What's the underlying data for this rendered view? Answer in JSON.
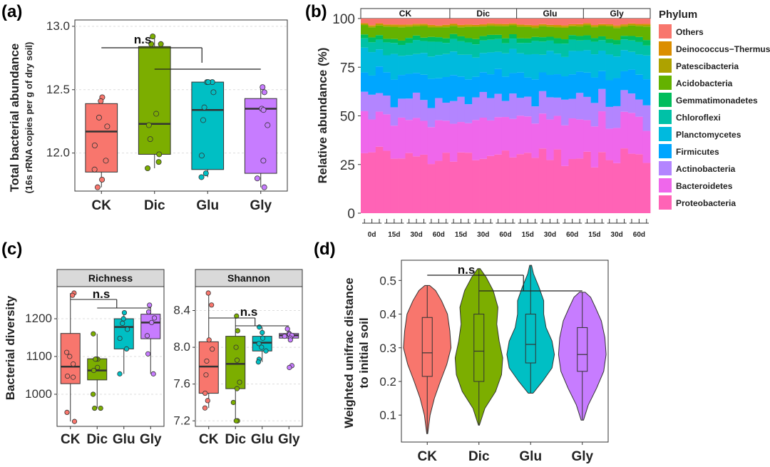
{
  "panels": {
    "a": "(a)",
    "b": "(b)",
    "c": "(c)",
    "d": "(d)"
  },
  "colors": {
    "CK": "#F8766D",
    "Dic": "#7CAE00",
    "Glu": "#00BFC4",
    "Gly": "#C77CFF"
  },
  "chart_data": [
    {
      "id": "a",
      "type": "box",
      "title": "",
      "xlabel": "",
      "ylabel": "Total bacterial abundance",
      "ylabel2": "(16s rRNA copies per g of dry soil)",
      "ylim": [
        11.7,
        13.05
      ],
      "yticks": [
        12.0,
        12.5,
        13.0
      ],
      "ytick_labels": [
        "12.0",
        "12.5",
        "13.0"
      ],
      "categories": [
        "CK",
        "Dic",
        "Glu",
        "Gly"
      ],
      "annotation": "n.s",
      "boxes": [
        {
          "q1": 11.85,
          "median": 12.17,
          "q3": 12.39,
          "whisker_low": 11.73,
          "whisker_high": 12.44,
          "points": [
            12.44,
            12.41,
            12.28,
            12.21,
            12.06,
            11.94,
            11.87,
            11.79,
            11.73
          ]
        },
        {
          "q1": 11.99,
          "median": 12.23,
          "q3": 12.84,
          "whisker_low": 11.88,
          "whisker_high": 12.92,
          "points": [
            12.92,
            12.86,
            12.86,
            12.31,
            12.22,
            12.11,
            11.99,
            11.93,
            11.88
          ]
        },
        {
          "q1": 11.87,
          "median": 12.34,
          "q3": 12.56,
          "whisker_low": 11.81,
          "whisker_high": 12.56,
          "points": [
            12.56,
            12.56,
            12.56,
            12.48,
            12.36,
            12.26,
            11.98,
            11.84,
            11.81
          ]
        },
        {
          "q1": 11.84,
          "median": 12.35,
          "q3": 12.43,
          "whisker_low": 11.73,
          "whisker_high": 12.52,
          "points": [
            12.52,
            12.48,
            12.35,
            12.34,
            12.22,
            11.94,
            11.8,
            11.73
          ]
        }
      ]
    },
    {
      "id": "b",
      "type": "stacked_bar",
      "ylabel": "Relative abundance (%)",
      "ylim": [
        0,
        100
      ],
      "yticks": [
        0,
        25,
        50,
        75,
        100
      ],
      "groups": [
        "CK",
        "Dic",
        "Glu",
        "Gly"
      ],
      "group_day_labels": [
        [
          "0d",
          "15d",
          "30d",
          "60d"
        ],
        [
          "15d",
          "30d",
          "60d"
        ],
        [
          "15d",
          "30d",
          "60d"
        ],
        [
          "15d",
          "30d",
          "60d"
        ]
      ],
      "legend_title": "Phylum",
      "phyla": [
        "Others",
        "Deinococcus−Thermus",
        "Patescibacteria",
        "Acidobacteria",
        "Gemmatimonadetes",
        "Chloroflexi",
        "Planctomycetes",
        "Firmicutes",
        "Actinobacteria",
        "Bacteroidetes",
        "Proteobacteria"
      ],
      "phylum_colors": [
        "#F8766D",
        "#DB8E00",
        "#AEA200",
        "#64B200",
        "#00BD5C",
        "#00C1A7",
        "#00BADE",
        "#00A6FF",
        "#B385FF",
        "#EF67EB",
        "#FF63B6"
      ],
      "mean_composition": [
        3,
        0.5,
        0.7,
        5.5,
        2.3,
        6,
        11,
        12,
        11,
        19,
        29
      ]
    },
    {
      "id": "c_richness",
      "type": "box",
      "facet": "Richness",
      "ylabel": "Bacterial diversity",
      "ylim": [
        915,
        1285
      ],
      "yticks": [
        1000,
        1100,
        1200
      ],
      "ytick_labels": [
        "1000",
        "1100",
        "1200"
      ],
      "categories": [
        "CK",
        "Dic",
        "Glu",
        "Gly"
      ],
      "annotation": "n.s",
      "boxes": [
        {
          "q1": 1028,
          "median": 1073,
          "q3": 1161,
          "whisker_low": 928,
          "whisker_high": 1268,
          "points": [
            1268,
            1262,
            1111,
            1100,
            1080,
            1048,
            1045,
            952,
            928
          ]
        },
        {
          "q1": 1038,
          "median": 1063,
          "q3": 1094,
          "whisker_low": 963,
          "whisker_high": 1160,
          "points": [
            1160,
            1093,
            1093,
            1093,
            1071,
            1063,
            1000,
            963,
            963
          ]
        },
        {
          "q1": 1120,
          "median": 1178,
          "q3": 1200,
          "whisker_low": 1054,
          "whisker_high": 1216,
          "points": [
            1216,
            1200,
            1188,
            1172,
            1148,
            1120,
            1054
          ]
        },
        {
          "q1": 1147,
          "median": 1190,
          "q3": 1212,
          "whisker_low": 1054,
          "whisker_high": 1236,
          "points": [
            1236,
            1218,
            1202,
            1190,
            1155,
            1107,
            1054
          ]
        }
      ]
    },
    {
      "id": "c_shannon",
      "type": "box",
      "facet": "Shannon",
      "ylim": [
        7.14,
        8.66
      ],
      "yticks": [
        7.2,
        7.6,
        8.0,
        8.4
      ],
      "ytick_labels": [
        "7.2",
        "7.6",
        "8.0",
        "8.4"
      ],
      "categories": [
        "CK",
        "Dic",
        "Glu",
        "Gly"
      ],
      "annotation": "n.s",
      "boxes": [
        {
          "q1": 7.5,
          "median": 7.79,
          "q3": 8.06,
          "whisker_low": 7.34,
          "whisker_high": 8.59,
          "points": [
            8.59,
            8.46,
            8.08,
            7.98,
            7.85,
            7.7,
            7.5,
            7.42,
            7.34
          ]
        },
        {
          "q1": 7.55,
          "median": 7.82,
          "q3": 8.12,
          "whisker_low": 7.2,
          "whisker_high": 8.34,
          "points": [
            8.34,
            8.18,
            8.0,
            7.86,
            7.62,
            7.55,
            7.4,
            7.2,
            7.2
          ]
        },
        {
          "q1": 7.96,
          "median": 8.05,
          "q3": 8.12,
          "whisker_low": 7.84,
          "whisker_high": 8.22,
          "points": [
            8.22,
            8.16,
            8.1,
            8.04,
            8.0,
            7.96,
            7.87,
            7.84
          ]
        },
        {
          "q1": 8.1,
          "median": 8.13,
          "q3": 8.15,
          "whisker_low": 8.06,
          "whisker_high": 8.2,
          "points": [
            8.2,
            8.15,
            8.14,
            8.13,
            8.12,
            8.1,
            8.08,
            7.8,
            7.78
          ]
        }
      ]
    },
    {
      "id": "d",
      "type": "violin",
      "ylabel": "Weighted unifrac distance",
      "ylabel2": "to initial soil",
      "ylim": [
        0.02,
        0.56
      ],
      "yticks": [
        0.1,
        0.2,
        0.3,
        0.4,
        0.5
      ],
      "ytick_labels": [
        "0.1",
        "0.2",
        "0.3",
        "0.4",
        "0.5"
      ],
      "categories": [
        "CK",
        "Dic",
        "Glu",
        "Gly"
      ],
      "annotation": "n.s",
      "violins": [
        {
          "min": 0.045,
          "max": 0.485,
          "q1": 0.215,
          "median": 0.285,
          "q3": 0.39,
          "whisker_low": 0.045,
          "whisker_high": 0.485,
          "density": [
            [
              0.045,
              0.02
            ],
            [
              0.1,
              0.12
            ],
            [
              0.15,
              0.3
            ],
            [
              0.2,
              0.55
            ],
            [
              0.25,
              0.82
            ],
            [
              0.3,
              1.0
            ],
            [
              0.35,
              0.95
            ],
            [
              0.4,
              0.85
            ],
            [
              0.44,
              0.6
            ],
            [
              0.47,
              0.35
            ],
            [
              0.485,
              0.1
            ]
          ]
        },
        {
          "min": 0.07,
          "max": 0.535,
          "q1": 0.2,
          "median": 0.29,
          "q3": 0.4,
          "whisker_low": 0.07,
          "whisker_high": 0.535,
          "density": [
            [
              0.07,
              0.02
            ],
            [
              0.12,
              0.25
            ],
            [
              0.17,
              0.7
            ],
            [
              0.22,
              0.95
            ],
            [
              0.27,
              1.0
            ],
            [
              0.32,
              0.85
            ],
            [
              0.37,
              0.75
            ],
            [
              0.42,
              0.8
            ],
            [
              0.47,
              0.6
            ],
            [
              0.51,
              0.3
            ],
            [
              0.535,
              0.05
            ]
          ]
        },
        {
          "min": 0.165,
          "max": 0.545,
          "q1": 0.255,
          "median": 0.31,
          "q3": 0.4,
          "whisker_low": 0.165,
          "whisker_high": 0.545,
          "density": [
            [
              0.165,
              0.1
            ],
            [
              0.2,
              0.5
            ],
            [
              0.24,
              0.9
            ],
            [
              0.28,
              1.0
            ],
            [
              0.32,
              0.9
            ],
            [
              0.36,
              0.65
            ],
            [
              0.4,
              0.55
            ],
            [
              0.44,
              0.55
            ],
            [
              0.48,
              0.35
            ],
            [
              0.52,
              0.12
            ],
            [
              0.545,
              0.04
            ]
          ]
        },
        {
          "min": 0.085,
          "max": 0.465,
          "q1": 0.23,
          "median": 0.28,
          "q3": 0.36,
          "whisker_low": 0.085,
          "whisker_high": 0.465,
          "density": [
            [
              0.085,
              0.05
            ],
            [
              0.13,
              0.25
            ],
            [
              0.18,
              0.6
            ],
            [
              0.23,
              0.9
            ],
            [
              0.28,
              1.0
            ],
            [
              0.33,
              0.95
            ],
            [
              0.38,
              0.8
            ],
            [
              0.42,
              0.55
            ],
            [
              0.45,
              0.35
            ],
            [
              0.465,
              0.12
            ]
          ]
        }
      ]
    }
  ]
}
